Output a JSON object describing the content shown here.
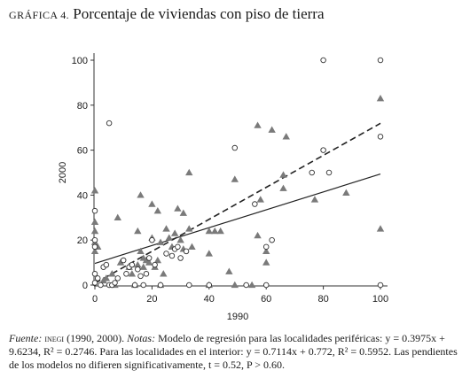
{
  "figure": {
    "label": "GRÁFICA 4.",
    "title": "Porcentaje de viviendas con piso de tierra"
  },
  "caption": {
    "source_label": "Fuente:",
    "source_org": "inegi",
    "source_years": " (1990, 2000). ",
    "notes_label": "Notas:",
    "notes_text": " Modelo de regresión para las localidades periféricas: y = 0.3975x + 9.6234, R² = 0.2746. Para las localidades en el interior: y = 0.7114x + 0.772, R² = 0.5952. Las pendientes de los modelos no difieren significativamente, t = 0.52, P > 0.60."
  },
  "chart_data": {
    "type": "scatter",
    "title": "",
    "xlabel": "1990",
    "ylabel": "2000",
    "xlim": [
      0,
      100
    ],
    "ylim": [
      0,
      100
    ],
    "xticks": [
      0,
      20,
      40,
      60,
      80,
      100
    ],
    "yticks": [
      0,
      20,
      40,
      60,
      80,
      100
    ],
    "grid": false,
    "legend": "none",
    "series": [
      {
        "marker": "circle",
        "color": "#333333",
        "regression": {
          "slope": 0.3975,
          "intercept": 9.6234,
          "style": "solid"
        },
        "points": [
          [
            0,
            33
          ],
          [
            0,
            20
          ],
          [
            0,
            17
          ],
          [
            0,
            5
          ],
          [
            0,
            1
          ],
          [
            1,
            3
          ],
          [
            2,
            0
          ],
          [
            3,
            8
          ],
          [
            4,
            9
          ],
          [
            5,
            72
          ],
          [
            5,
            0
          ],
          [
            6,
            0
          ],
          [
            7,
            1
          ],
          [
            8,
            3
          ],
          [
            10,
            11
          ],
          [
            11,
            5
          ],
          [
            12,
            8
          ],
          [
            13,
            9
          ],
          [
            14,
            0
          ],
          [
            15,
            7
          ],
          [
            16,
            4
          ],
          [
            17,
            0
          ],
          [
            18,
            5
          ],
          [
            19,
            12
          ],
          [
            20,
            20
          ],
          [
            21,
            9
          ],
          [
            23,
            0
          ],
          [
            25,
            14
          ],
          [
            27,
            13
          ],
          [
            28,
            16
          ],
          [
            29,
            17
          ],
          [
            30,
            12
          ],
          [
            32,
            15
          ],
          [
            33,
            0
          ],
          [
            40,
            0
          ],
          [
            49,
            61
          ],
          [
            53,
            0
          ],
          [
            56,
            36
          ],
          [
            60,
            17
          ],
          [
            60,
            0
          ],
          [
            62,
            20
          ],
          [
            76,
            50
          ],
          [
            80,
            60
          ],
          [
            80,
            100
          ],
          [
            82,
            50
          ],
          [
            100,
            100
          ],
          [
            100,
            66
          ],
          [
            100,
            0
          ]
        ]
      },
      {
        "marker": "triangle",
        "color": "#7a7a7a",
        "regression": {
          "slope": 0.7114,
          "intercept": 0.772,
          "style": "dashed"
        },
        "points": [
          [
            0,
            42
          ],
          [
            0,
            28
          ],
          [
            0,
            24
          ],
          [
            0,
            19
          ],
          [
            0,
            15
          ],
          [
            1,
            17
          ],
          [
            3,
            2
          ],
          [
            4,
            3
          ],
          [
            6,
            5
          ],
          [
            7,
            0
          ],
          [
            8,
            30
          ],
          [
            9,
            10
          ],
          [
            12,
            8
          ],
          [
            13,
            5
          ],
          [
            14,
            0
          ],
          [
            15,
            9
          ],
          [
            15,
            24
          ],
          [
            16,
            40
          ],
          [
            16,
            15
          ],
          [
            17,
            12
          ],
          [
            17,
            8
          ],
          [
            18,
            11
          ],
          [
            19,
            10
          ],
          [
            20,
            36
          ],
          [
            20,
            21
          ],
          [
            21,
            8
          ],
          [
            22,
            11
          ],
          [
            22,
            33
          ],
          [
            23,
            0
          ],
          [
            23,
            19
          ],
          [
            24,
            5
          ],
          [
            25,
            25
          ],
          [
            26,
            21
          ],
          [
            27,
            17
          ],
          [
            28,
            23
          ],
          [
            29,
            34
          ],
          [
            30,
            20
          ],
          [
            31,
            16
          ],
          [
            31,
            32
          ],
          [
            33,
            25
          ],
          [
            33,
            50
          ],
          [
            34,
            17
          ],
          [
            40,
            24
          ],
          [
            40,
            14
          ],
          [
            40,
            0
          ],
          [
            42,
            24
          ],
          [
            44,
            24
          ],
          [
            47,
            6
          ],
          [
            49,
            47
          ],
          [
            49,
            0
          ],
          [
            55,
            0
          ],
          [
            57,
            22
          ],
          [
            57,
            71
          ],
          [
            58,
            38
          ],
          [
            60,
            15
          ],
          [
            60,
            10
          ],
          [
            62,
            69
          ],
          [
            66,
            43
          ],
          [
            66,
            49
          ],
          [
            67,
            66
          ],
          [
            77,
            38
          ],
          [
            88,
            41
          ],
          [
            100,
            83
          ],
          [
            100,
            25
          ]
        ]
      }
    ]
  }
}
